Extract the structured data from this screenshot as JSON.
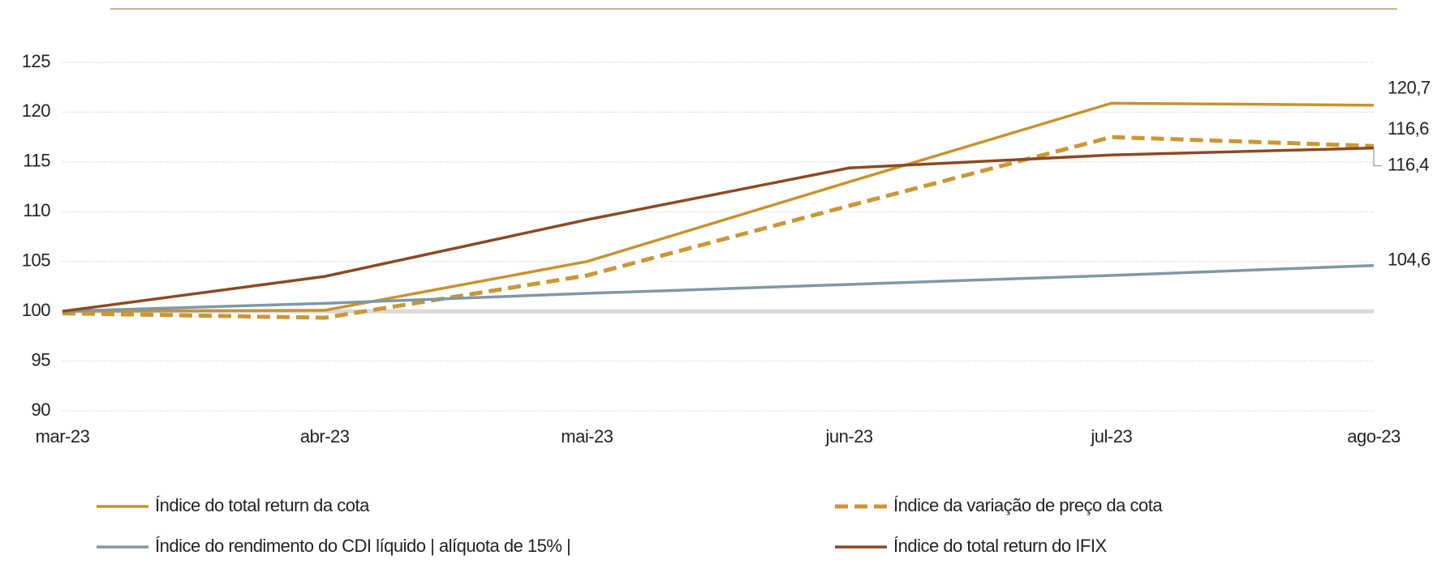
{
  "chart_data": {
    "type": "line",
    "categories": [
      "mar-23",
      "abr-23",
      "mai-23",
      "jun-23",
      "jul-23",
      "ago-23"
    ],
    "ylim": [
      90,
      125
    ],
    "yticks": [
      90,
      95,
      100,
      105,
      110,
      115,
      120,
      125
    ],
    "grid": true,
    "baseline": 100,
    "baseline_color": "#d9d9d9",
    "series": [
      {
        "name": "Índice do total return da cota",
        "color": "#C8922E",
        "dashed": false,
        "values": [
          100,
          100.1,
          105.0,
          113.0,
          120.9,
          120.7
        ],
        "value_labels": [
          null,
          null,
          null,
          null,
          null,
          "120,7"
        ]
      },
      {
        "name": "Índice da variação de preço da cota",
        "color": "#CB9634",
        "dashed": true,
        "values": [
          99.8,
          99.35,
          103.6,
          110.6,
          117.5,
          116.6
        ],
        "value_labels": [
          null,
          null,
          null,
          null,
          null,
          "116,6"
        ]
      },
      {
        "name": "Índice do rendimento do CDI líquido | alíquota de 15% |",
        "color": "#7F98A5",
        "dashed": false,
        "values": [
          100,
          100.8,
          101.8,
          102.7,
          103.6,
          104.6
        ],
        "value_labels": [
          null,
          null,
          null,
          null,
          null,
          "104,6"
        ]
      },
      {
        "name": "Índice do total return do IFIX",
        "color": "#8B4A22",
        "dashed": false,
        "values": [
          100,
          103.5,
          109.2,
          114.4,
          115.7,
          116.4
        ],
        "value_labels": [
          null,
          null,
          null,
          null,
          null,
          "116,4"
        ]
      }
    ]
  }
}
